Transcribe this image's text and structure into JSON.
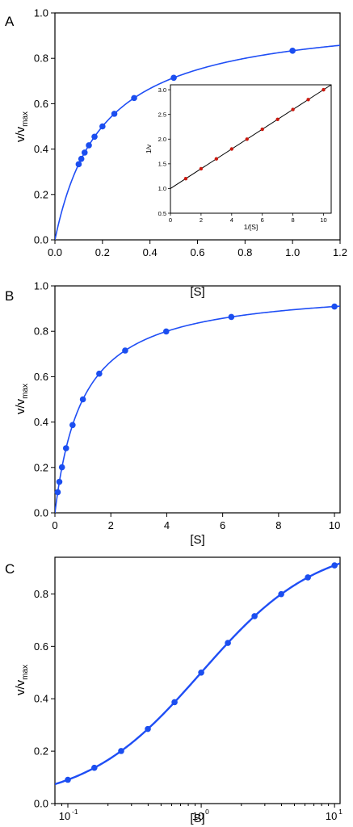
{
  "colors": {
    "curve": "#1f4ef5",
    "point": "#1b4ef0",
    "inset_line": "#000000",
    "inset_point": "#cc1a10",
    "axis": "#000000"
  },
  "chart_data": [
    {
      "panel": "A",
      "type": "line",
      "xlabel": "[S]",
      "ylabel_main": "v/v",
      "ylabel_sub": "max",
      "xlim": [
        0,
        1.2
      ],
      "ylim": [
        0,
        1.0
      ],
      "x_scale": "linear",
      "xticks": [
        "0.0",
        "0.2",
        "0.4",
        "0.6",
        "0.8",
        "1.0",
        "1.2"
      ],
      "yticks": [
        "0.0",
        "0.2",
        "0.4",
        "0.6",
        "0.8",
        "1.0"
      ],
      "grid": false,
      "series": [
        {
          "x": [
            0.1,
            0.1111,
            0.125,
            0.1429,
            0.1667,
            0.2,
            0.25,
            0.3333,
            0.5,
            1.0
          ],
          "values": [
            0.3333,
            0.3571,
            0.3846,
            0.4167,
            0.4545,
            0.5,
            0.5556,
            0.625,
            0.7143,
            0.8333
          ],
          "style": "points_with_fitted_curve"
        }
      ],
      "inset": {
        "type": "scatter",
        "xlabel": "1/[S]",
        "ylabel": "1/v",
        "xlim": [
          0,
          10.5
        ],
        "ylim": [
          0.5,
          3.1
        ],
        "xticks": [
          "0",
          "2",
          "4",
          "6",
          "8",
          "10"
        ],
        "yticks": [
          "0.5",
          "1.0",
          "1.5",
          "2.0",
          "2.5",
          "3.0"
        ],
        "series": [
          {
            "x": [
              1,
              2,
              3,
              4,
              5,
              6,
              7,
              8,
              9,
              10
            ],
            "values": [
              1.2,
              1.4,
              1.6,
              1.8,
              2.0,
              2.2,
              2.4,
              2.6,
              2.8,
              3.0
            ],
            "style": "points_with_fitted_line"
          }
        ]
      }
    },
    {
      "panel": "B",
      "type": "line",
      "xlabel": "[S]",
      "ylabel_main": "v/v",
      "ylabel_sub": "max",
      "xlim": [
        0,
        10.2
      ],
      "ylim": [
        0,
        1.0
      ],
      "x_scale": "linear",
      "xticks": [
        "0",
        "2",
        "4",
        "6",
        "8",
        "10"
      ],
      "yticks": [
        "0.0",
        "0.2",
        "0.4",
        "0.6",
        "0.8",
        "1.0"
      ],
      "grid": false,
      "series": [
        {
          "x": [
            0.1,
            0.158,
            0.251,
            0.398,
            0.631,
            1.0,
            1.585,
            2.512,
            3.981,
            6.31,
            10.0
          ],
          "values": [
            0.0909,
            0.1366,
            0.2007,
            0.2847,
            0.3869,
            0.5,
            0.6131,
            0.7153,
            0.7993,
            0.8632,
            0.9091
          ],
          "style": "points_with_fitted_curve"
        }
      ]
    },
    {
      "panel": "C",
      "type": "line",
      "xlabel": "[S]",
      "ylabel_main": "v/v",
      "ylabel_sub": "max",
      "xlim": [
        0.08,
        11
      ],
      "ylim": [
        0,
        0.94
      ],
      "x_scale": "log",
      "xticks": [
        {
          "base": "10",
          "exp": "-1"
        },
        {
          "base": "10",
          "exp": "0"
        },
        {
          "base": "10",
          "exp": "1"
        }
      ],
      "yticks": [
        "0.0",
        "0.2",
        "0.4",
        "0.6",
        "0.8"
      ],
      "grid": false,
      "series": [
        {
          "x": [
            0.1,
            0.158,
            0.251,
            0.398,
            0.631,
            1.0,
            1.585,
            2.512,
            3.981,
            6.31,
            10.0
          ],
          "values": [
            0.0909,
            0.1366,
            0.2007,
            0.2847,
            0.3869,
            0.5,
            0.6131,
            0.7153,
            0.7993,
            0.8632,
            0.9091
          ],
          "style": "points_with_connecting_line"
        }
      ]
    }
  ]
}
